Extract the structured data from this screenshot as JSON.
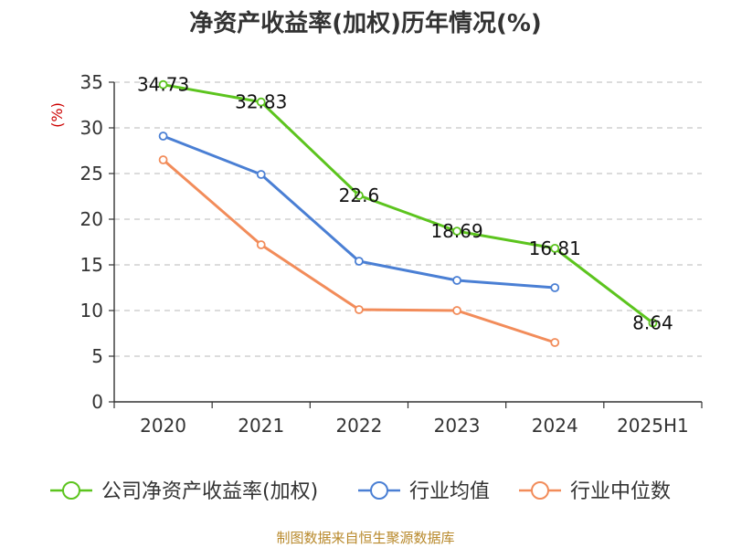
{
  "chart_data": {
    "type": "line",
    "title": "净资产收益率(加权)历年情况(%)",
    "ylabel": "(%)",
    "xlabel": "",
    "categories": [
      "2020",
      "2021",
      "2022",
      "2023",
      "2024",
      "2025H1"
    ],
    "ylim": [
      0,
      35
    ],
    "yticks": [
      0,
      5,
      10,
      15,
      20,
      25,
      30,
      35
    ],
    "grid": true,
    "legend_position": "bottom",
    "series": [
      {
        "name": "公司净资产收益率(加权)",
        "color": "#5cc41e",
        "values": [
          34.73,
          32.83,
          22.6,
          18.69,
          16.81,
          8.64
        ],
        "labels": [
          "34.73",
          "32.83",
          "22.6",
          "18.69",
          "16.81",
          "8.64"
        ]
      },
      {
        "name": "行业均值",
        "color": "#4a7fd4",
        "values": [
          29.1,
          24.9,
          15.4,
          13.3,
          12.5,
          null
        ]
      },
      {
        "name": "行业中位数",
        "color": "#f28c5a",
        "values": [
          26.5,
          17.2,
          10.1,
          10.0,
          6.5,
          null
        ]
      }
    ]
  },
  "footer": {
    "source": "制图数据来自恒生聚源数据库"
  }
}
